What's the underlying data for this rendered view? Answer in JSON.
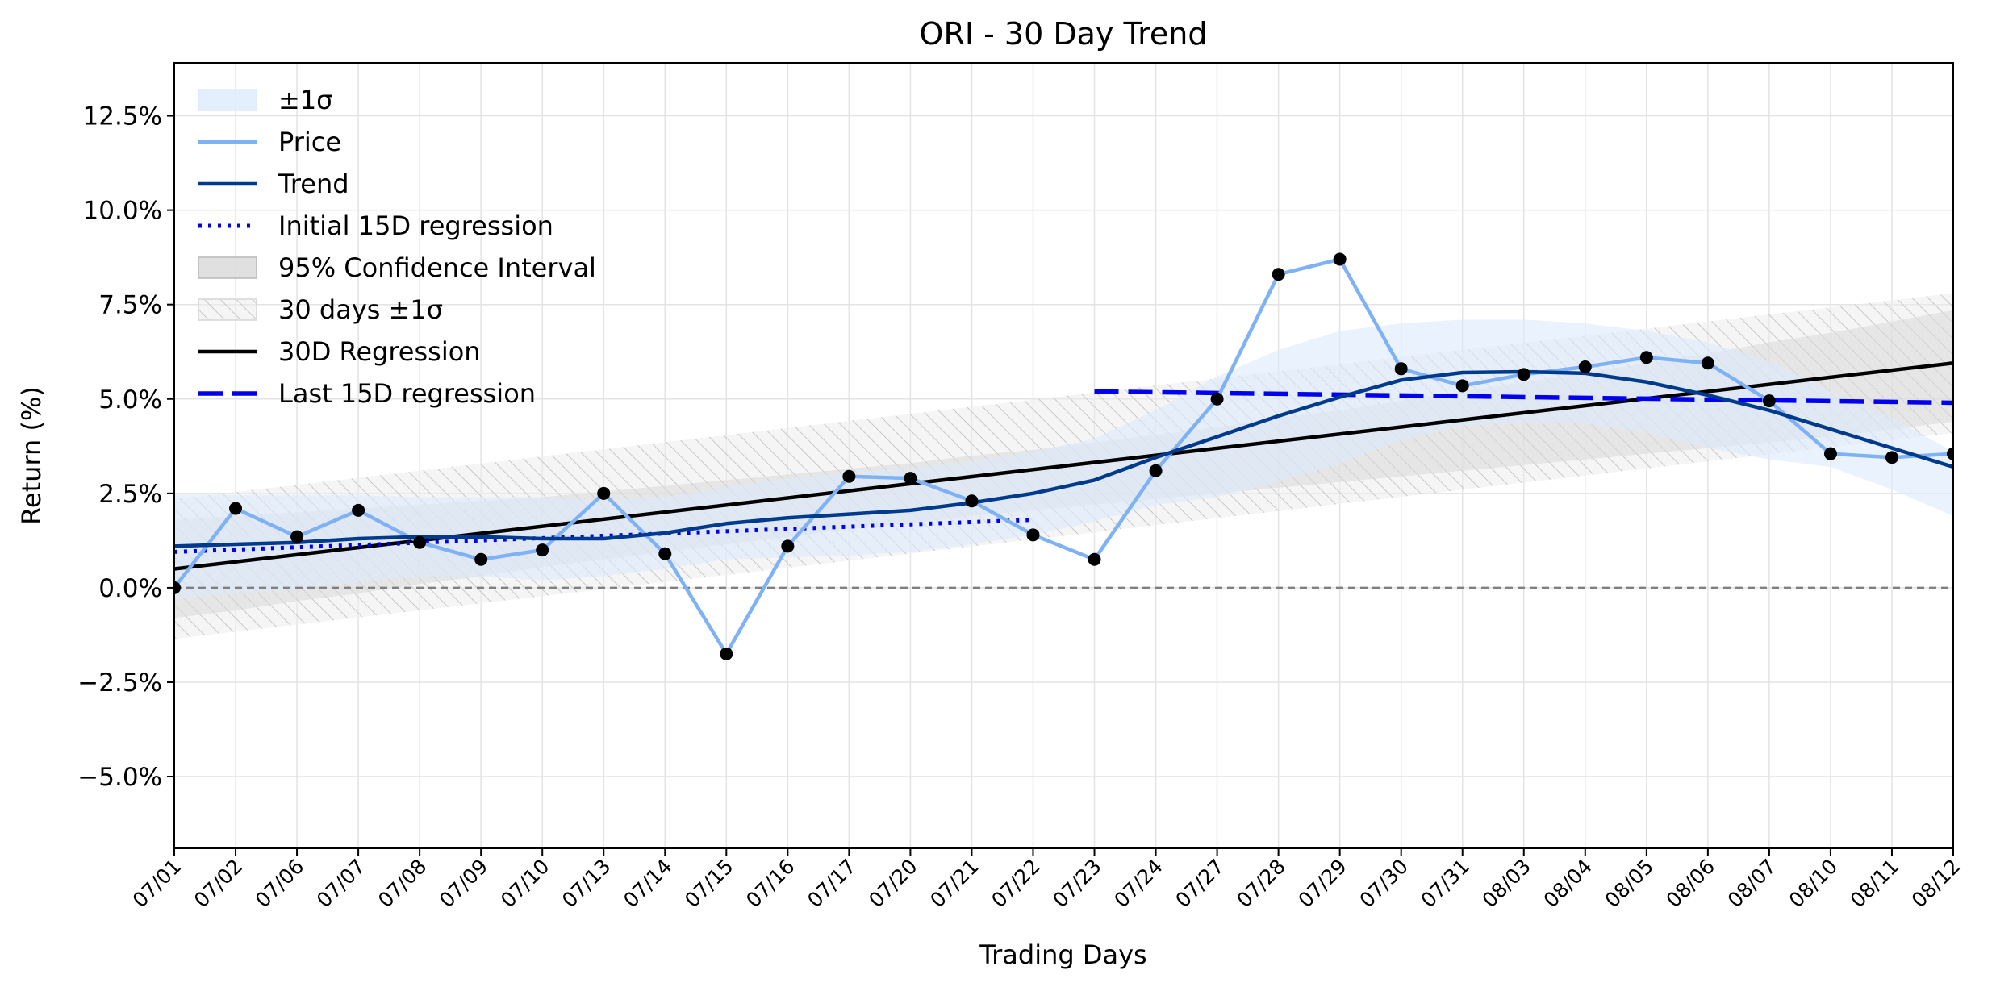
{
  "chart_data": {
    "type": "line",
    "title": "ORI - 30 Day Trend",
    "xlabel": "Trading Days",
    "ylabel": "Return (%)",
    "ylim": [
      -6.9,
      13.9
    ],
    "yticks": [
      -5.0,
      -2.5,
      0.0,
      2.5,
      5.0,
      7.5,
      10.0,
      12.5
    ],
    "ytick_labels": [
      "−5.0%",
      "−2.5%",
      "0.0%",
      "2.5%",
      "5.0%",
      "7.5%",
      "10.0%",
      "12.5%"
    ],
    "grid": true,
    "legend_position": "top-left",
    "categories": [
      "07/01",
      "07/02",
      "07/06",
      "07/07",
      "07/08",
      "07/09",
      "07/10",
      "07/13",
      "07/14",
      "07/15",
      "07/16",
      "07/17",
      "07/20",
      "07/21",
      "07/22",
      "07/23",
      "07/24",
      "07/27",
      "07/28",
      "07/29",
      "07/30",
      "07/31",
      "08/03",
      "08/04",
      "08/05",
      "08/06",
      "08/07",
      "08/10",
      "08/11",
      "08/12"
    ],
    "series": [
      {
        "name": "Price",
        "color": "#7fb2f5",
        "values": [
          0.0,
          2.1,
          1.35,
          2.05,
          1.2,
          0.75,
          1.0,
          2.5,
          0.9,
          -1.75,
          1.1,
          2.95,
          2.9,
          2.3,
          1.4,
          0.75,
          3.1,
          5.0,
          8.3,
          8.7,
          5.8,
          5.35,
          5.65,
          5.85,
          6.1,
          5.95,
          4.95,
          3.55,
          3.45,
          3.55
        ]
      },
      {
        "name": "Trend",
        "color": "#003a8c",
        "values": [
          1.1,
          1.15,
          1.2,
          1.3,
          1.35,
          1.35,
          1.3,
          1.3,
          1.45,
          1.7,
          1.85,
          1.95,
          2.05,
          2.25,
          2.5,
          2.85,
          3.45,
          4.0,
          4.55,
          5.05,
          5.5,
          5.7,
          5.72,
          5.68,
          5.45,
          5.1,
          4.7,
          4.2,
          3.7,
          3.2
        ]
      },
      {
        "name": "Initial 15D regression",
        "color": "#0000ee",
        "start": 0,
        "end": 14,
        "y_start": 0.95,
        "y_end": 1.8
      },
      {
        "name": "Last 15D regression",
        "color": "#0000ee",
        "start": 15,
        "end": 29,
        "y_start": 5.2,
        "y_end": 4.9
      },
      {
        "name": "30D Regression",
        "color": "#000000",
        "start": 0,
        "end": 29,
        "y_start": 0.5,
        "y_end": 5.95
      }
    ],
    "bands": {
      "sigma_1": {
        "name": "±1σ",
        "color": "#dcebfc",
        "upper": [
          2.5,
          2.45,
          2.45,
          2.45,
          2.4,
          2.4,
          2.4,
          2.3,
          2.4,
          2.65,
          2.9,
          3.05,
          3.15,
          3.35,
          3.6,
          3.95,
          4.7,
          5.6,
          6.3,
          6.8,
          7.0,
          7.1,
          7.1,
          7.0,
          6.8,
          6.5,
          6.0,
          5.2,
          4.5,
          3.6
        ],
        "lower": [
          -0.3,
          -0.15,
          -0.05,
          0.15,
          0.3,
          0.3,
          0.2,
          0.3,
          0.5,
          0.75,
          0.8,
          0.85,
          0.95,
          1.15,
          1.4,
          1.75,
          2.2,
          2.4,
          2.8,
          3.3,
          3.9,
          4.3,
          4.35,
          4.35,
          4.1,
          3.7,
          3.4,
          3.2,
          2.6,
          1.9
        ]
      },
      "ci_95": {
        "name": "95% Confidence Interval",
        "color": "#d8d8d8",
        "upper": [
          1.8,
          1.9,
          2.0,
          2.1,
          2.2,
          2.3,
          2.4,
          2.55,
          2.7,
          2.85,
          3.0,
          3.15,
          3.3,
          3.5,
          3.65,
          3.85,
          4.05,
          4.25,
          4.5,
          4.7,
          4.95,
          5.2,
          5.45,
          5.7,
          5.95,
          6.2,
          6.5,
          6.75,
          7.05,
          7.35
        ],
        "lower": [
          -0.8,
          -0.6,
          -0.35,
          -0.15,
          0.1,
          0.3,
          0.55,
          0.75,
          0.95,
          1.15,
          1.35,
          1.55,
          1.7,
          1.9,
          2.05,
          2.2,
          2.35,
          2.5,
          2.65,
          2.8,
          2.95,
          3.1,
          3.25,
          3.4,
          3.55,
          3.7,
          3.85,
          4.0,
          4.2,
          4.4
        ]
      },
      "sigma_30": {
        "name": "30 days ±1σ",
        "color": "#c8c8c8",
        "offset": 1.85
      }
    },
    "reference_line": {
      "y": 0.0,
      "color": "#808080"
    }
  }
}
